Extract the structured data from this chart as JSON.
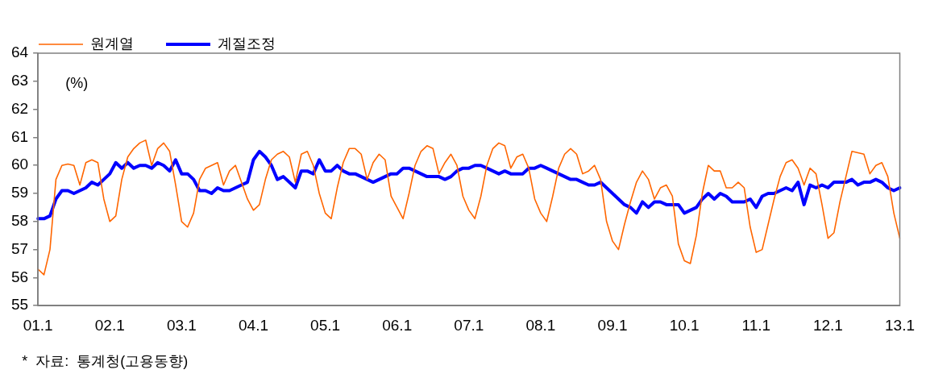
{
  "chart_data": {
    "type": "line",
    "ylabel": "(%)",
    "annotations": [
      "*  자료:  통계청(고용동향)"
    ],
    "categories": [
      "01.1",
      null,
      null,
      null,
      null,
      null,
      null,
      null,
      null,
      null,
      null,
      null,
      "02.1",
      null,
      null,
      null,
      null,
      null,
      null,
      null,
      null,
      null,
      null,
      null,
      "03.1",
      null,
      null,
      null,
      null,
      null,
      null,
      null,
      null,
      null,
      null,
      null,
      "04.1",
      null,
      null,
      null,
      null,
      null,
      null,
      null,
      null,
      null,
      null,
      null,
      "05.1",
      null,
      null,
      null,
      null,
      null,
      null,
      null,
      null,
      null,
      null,
      null,
      "06.1",
      null,
      null,
      null,
      null,
      null,
      null,
      null,
      null,
      null,
      null,
      null,
      "07.1",
      null,
      null,
      null,
      null,
      null,
      null,
      null,
      null,
      null,
      null,
      null,
      "08.1",
      null,
      null,
      null,
      null,
      null,
      null,
      null,
      null,
      null,
      null,
      null,
      "09.1",
      null,
      null,
      null,
      null,
      null,
      null,
      null,
      null,
      null,
      null,
      null,
      "10.1",
      null,
      null,
      null,
      null,
      null,
      null,
      null,
      null,
      null,
      null,
      null,
      "11.1",
      null,
      null,
      null,
      null,
      null,
      null,
      null,
      null,
      null,
      null,
      null,
      "12.1",
      null,
      null,
      null,
      null,
      null,
      null,
      null,
      null,
      null,
      null,
      null,
      "13.1"
    ],
    "series": [
      {
        "name": "원계열",
        "color": "#ff6600",
        "values": [
          56.3,
          56.1,
          57.0,
          59.5,
          60.0,
          60.05,
          60.0,
          59.3,
          60.1,
          60.2,
          60.1,
          58.8,
          58.0,
          58.2,
          59.5,
          60.3,
          60.6,
          60.8,
          60.9,
          60.0,
          60.6,
          60.8,
          60.5,
          59.3,
          58.0,
          57.8,
          58.3,
          59.5,
          59.9,
          60.0,
          60.1,
          59.3,
          59.8,
          60.0,
          59.4,
          58.8,
          58.4,
          58.6,
          59.5,
          60.2,
          60.4,
          60.5,
          60.3,
          59.4,
          60.4,
          60.5,
          60.0,
          59.0,
          58.3,
          58.1,
          59.2,
          60.1,
          60.6,
          60.6,
          60.4,
          59.5,
          60.1,
          60.4,
          60.2,
          58.9,
          58.5,
          58.1,
          59.0,
          60.0,
          60.5,
          60.7,
          60.6,
          59.7,
          60.1,
          60.4,
          60.0,
          58.9,
          58.4,
          58.1,
          58.9,
          60.0,
          60.6,
          60.8,
          60.7,
          59.9,
          60.3,
          60.4,
          59.9,
          58.8,
          58.3,
          58.0,
          58.9,
          59.9,
          60.4,
          60.6,
          60.4,
          59.7,
          59.8,
          60.0,
          59.5,
          58.0,
          57.3,
          57.0,
          57.9,
          58.7,
          59.4,
          59.8,
          59.5,
          58.8,
          59.2,
          59.3,
          58.9,
          57.2,
          56.6,
          56.5,
          57.5,
          59.0,
          60.0,
          59.8,
          59.8,
          59.2,
          59.2,
          59.4,
          59.2,
          57.8,
          56.9,
          57.0,
          57.9,
          58.8,
          59.6,
          60.1,
          60.2,
          59.9,
          59.3,
          59.9,
          59.7,
          58.6,
          57.4,
          57.6,
          58.7,
          59.6,
          60.5,
          60.45,
          60.4,
          59.7,
          60.0,
          60.1,
          59.6,
          58.3,
          57.4
        ]
      },
      {
        "name": "계절조정",
        "color": "#0000ff",
        "values": [
          58.1,
          58.1,
          58.2,
          58.8,
          59.1,
          59.1,
          59.0,
          59.1,
          59.2,
          59.4,
          59.3,
          59.5,
          59.7,
          60.1,
          59.9,
          60.1,
          59.9,
          60.0,
          60.0,
          59.9,
          60.1,
          60.0,
          59.8,
          60.2,
          59.7,
          59.7,
          59.5,
          59.1,
          59.1,
          59.0,
          59.2,
          59.1,
          59.1,
          59.2,
          59.3,
          59.4,
          60.2,
          60.5,
          60.3,
          60.0,
          59.5,
          59.6,
          59.4,
          59.2,
          59.8,
          59.8,
          59.7,
          60.2,
          59.8,
          59.8,
          60.0,
          59.8,
          59.7,
          59.7,
          59.6,
          59.5,
          59.4,
          59.5,
          59.6,
          59.7,
          59.7,
          59.9,
          59.9,
          59.8,
          59.7,
          59.6,
          59.6,
          59.6,
          59.5,
          59.6,
          59.8,
          59.9,
          59.9,
          60.0,
          60.0,
          59.9,
          59.8,
          59.7,
          59.8,
          59.7,
          59.7,
          59.7,
          59.9,
          59.9,
          60.0,
          59.9,
          59.8,
          59.7,
          59.6,
          59.5,
          59.5,
          59.4,
          59.3,
          59.3,
          59.4,
          59.2,
          59.0,
          58.8,
          58.6,
          58.5,
          58.3,
          58.7,
          58.5,
          58.7,
          58.7,
          58.6,
          58.6,
          58.6,
          58.3,
          58.4,
          58.5,
          58.8,
          59.0,
          58.8,
          59.0,
          58.9,
          58.7,
          58.7,
          58.7,
          58.8,
          58.5,
          58.9,
          59.0,
          59.0,
          59.1,
          59.2,
          59.1,
          59.4,
          58.6,
          59.3,
          59.2,
          59.3,
          59.2,
          59.4,
          59.4,
          59.4,
          59.5,
          59.3,
          59.4,
          59.4,
          59.5,
          59.4,
          59.2,
          59.1,
          59.2
        ]
      }
    ],
    "ylim": [
      55,
      64
    ],
    "yticks": [
      55,
      56,
      57,
      58,
      59,
      60,
      61,
      62,
      63,
      64
    ],
    "grid": false,
    "legend": "top left",
    "marker": "none",
    "line_style": "solid"
  }
}
